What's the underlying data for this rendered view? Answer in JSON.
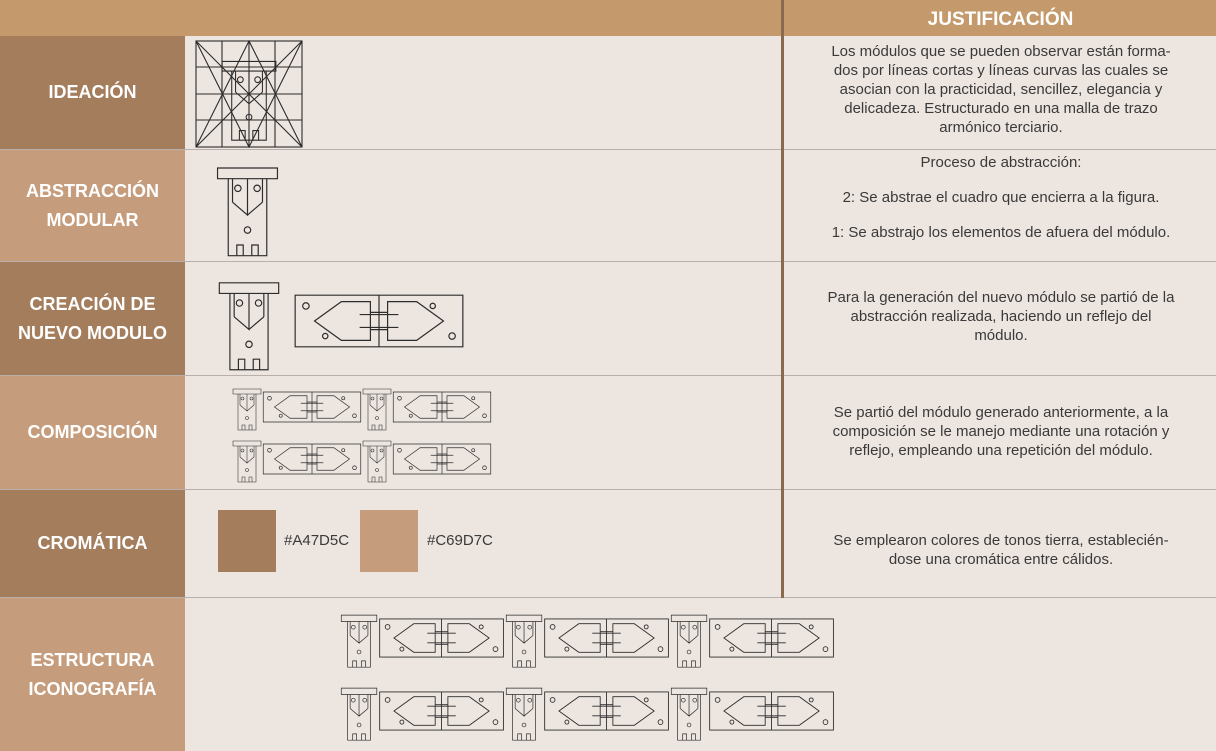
{
  "header": {
    "title": "JUSTIFICACIÓN"
  },
  "rows": [
    {
      "label": [
        "IDEACIÓN"
      ],
      "text": [
        "Los módulos que se pueden observar están forma-",
        "dos por líneas cortas y líneas curvas las cuales se",
        "asocian con la practicidad, sencillez, elegancia y",
        "delicadeza. Estructurado en una malla de trazo",
        "armónico terciario."
      ]
    },
    {
      "label": [
        "ABSTRACCIÓN",
        "MODULAR"
      ],
      "text": [
        "Proceso de abstracción:",
        "2: Se abstrae el cuadro que encierra a la figura.",
        "1: Se abstrajo los elementos de afuera del módulo."
      ]
    },
    {
      "label": [
        "CREACIÓN DE",
        "NUEVO MODULO"
      ],
      "text": [
        "Para la generación del nuevo módulo se partió de la",
        "abstracción realizada, haciendo un reflejo del",
        "módulo."
      ]
    },
    {
      "label": [
        "COMPOSICIÓN"
      ],
      "text": [
        "Se partió del módulo generado anteriormente, a la",
        "composición se le manejo mediante una rotación y",
        "reflejo, empleando una repetición del módulo."
      ]
    },
    {
      "label": [
        "CROMÁTICA"
      ],
      "swatches": [
        "#A47D5C",
        "#C69D7C"
      ],
      "text": [
        "Se emplearon colores de tonos tierra, establecién-",
        "dose una cromática entre cálidos."
      ]
    },
    {
      "label": [
        "ESTRUCTURA",
        "ICONOGRAFÍA"
      ]
    }
  ]
}
